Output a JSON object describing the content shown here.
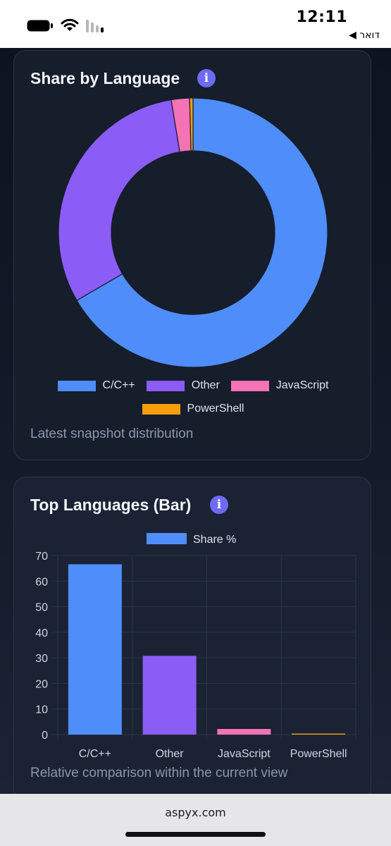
{
  "status": {
    "time": "12:11",
    "back_app": "◀ דואר"
  },
  "donut_card": {
    "title": "Share by Language",
    "caption": "Latest snapshot distribution"
  },
  "bar_card": {
    "title": "Top Languages (Bar)",
    "caption": "Relative comparison within the current view"
  },
  "url": "aspyx.com",
  "chart_data": [
    {
      "type": "pie",
      "title": "Share by Language",
      "categories": [
        "C/C++",
        "Other",
        "JavaScript",
        "PowerShell"
      ],
      "values": [
        66.6,
        30.8,
        2.2,
        0.4
      ],
      "colors": [
        "#4f8dfb",
        "#8b5cf6",
        "#f472b6",
        "#f59e0b"
      ],
      "legend": "bottom"
    },
    {
      "type": "bar",
      "title": "Top Languages (Bar)",
      "categories": [
        "C/C++",
        "Other",
        "JavaScript",
        "PowerShell"
      ],
      "series": [
        {
          "name": "Share %",
          "values": [
            66.6,
            30.8,
            2.2,
            0.4
          ]
        }
      ],
      "colors": [
        "#4f8dfb",
        "#8b5cf6",
        "#f472b6",
        "#f59e0b"
      ],
      "ylim": [
        0,
        70
      ],
      "yticks": [
        "0",
        "10",
        "20",
        "30",
        "40",
        "50",
        "60",
        "70"
      ],
      "grid": true,
      "legend": "top"
    }
  ]
}
